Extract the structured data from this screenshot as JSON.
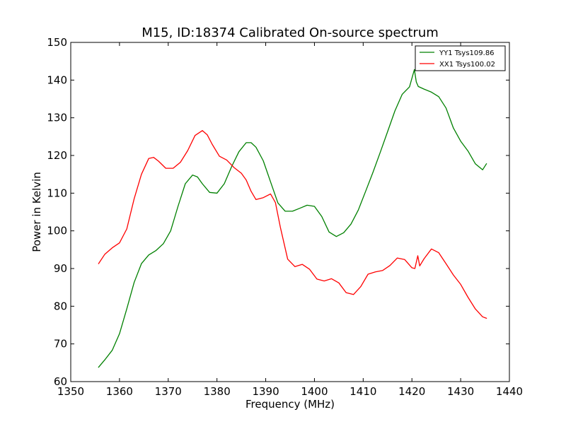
{
  "chart_data": {
    "type": "line",
    "title": "M15, ID:18374 Calibrated On-source spectrum",
    "xlabel": "Frequency (MHz)",
    "ylabel": "Power in Kelvin",
    "xlim": [
      1350,
      1440
    ],
    "ylim": [
      60,
      150
    ],
    "xticks": [
      1350,
      1360,
      1370,
      1380,
      1390,
      1400,
      1410,
      1420,
      1430,
      1440
    ],
    "yticks": [
      60,
      70,
      80,
      90,
      100,
      110,
      120,
      130,
      140,
      150
    ],
    "grid": false,
    "legend_position": "top-right",
    "series": [
      {
        "name": "YY1 Tsys109.86",
        "color": "#008000",
        "x": [
          1355.7,
          1357,
          1358.5,
          1360,
          1361.5,
          1363,
          1364.5,
          1366,
          1367.5,
          1369,
          1370.5,
          1372,
          1373.5,
          1375,
          1376,
          1377,
          1378.5,
          1380,
          1381.5,
          1383,
          1384.5,
          1386,
          1387,
          1388,
          1389.5,
          1391,
          1392.5,
          1394,
          1395.5,
          1397,
          1398.5,
          1400,
          1401.5,
          1403,
          1404.5,
          1406,
          1407.5,
          1409,
          1410.5,
          1412,
          1413.5,
          1415,
          1416.5,
          1418,
          1419.5,
          1420.5,
          1420.9,
          1421.3,
          1422.5,
          1424,
          1425.5,
          1427,
          1428.5,
          1430,
          1431.5,
          1433,
          1434.5,
          1435.3
        ],
        "y": [
          63.8,
          65.8,
          68.3,
          72.7,
          79.3,
          86.3,
          91.3,
          93.6,
          94.8,
          96.6,
          100,
          106.5,
          112.5,
          114.8,
          114.3,
          112.5,
          110.2,
          110,
          112.5,
          117,
          121,
          123.4,
          123.4,
          122.2,
          118.6,
          113,
          107.4,
          105.2,
          105.2,
          106,
          106.8,
          106.5,
          103.8,
          99.7,
          98.5,
          99.5,
          101.8,
          105.5,
          110.5,
          115.5,
          120.8,
          126.3,
          131.8,
          136.2,
          138.2,
          142.8,
          139.5,
          138.3,
          137.6,
          136.8,
          135.6,
          132.6,
          127.3,
          123.8,
          121.2,
          117.8,
          116.2,
          117.8
        ]
      },
      {
        "name": "XX1 Tsys100.02",
        "color": "#ff0000",
        "x": [
          1355.7,
          1357,
          1358.5,
          1360,
          1361.5,
          1363,
          1364.5,
          1366,
          1367,
          1368,
          1369.5,
          1371,
          1372.5,
          1374,
          1375.5,
          1377,
          1378,
          1379,
          1380.5,
          1382,
          1383.5,
          1385,
          1386,
          1387,
          1388,
          1389.5,
          1391,
          1392,
          1393,
          1394.5,
          1396,
          1397.5,
          1399,
          1400.5,
          1402,
          1403.5,
          1405,
          1406.5,
          1408,
          1409.5,
          1411,
          1412.5,
          1414,
          1415.5,
          1417,
          1418.5,
          1420,
          1420.6,
          1421.2,
          1421.6,
          1422.5,
          1424,
          1425.5,
          1427,
          1428.5,
          1430,
          1431.5,
          1433,
          1434.5,
          1435.3
        ],
        "y": [
          91.3,
          93.8,
          95.5,
          96.8,
          100.5,
          108.5,
          115,
          119.2,
          119.5,
          118.5,
          116.6,
          116.6,
          118.2,
          121.3,
          125.3,
          126.6,
          125.5,
          123,
          119.8,
          118.8,
          116.8,
          115.3,
          113.5,
          110.5,
          108.3,
          108.8,
          109.8,
          107.5,
          101,
          92.5,
          90.5,
          91.1,
          89.8,
          87.2,
          86.7,
          87.3,
          86.2,
          83.6,
          83.1,
          85.2,
          88.5,
          89.1,
          89.5,
          90.8,
          92.8,
          92.4,
          90.2,
          90,
          93.4,
          90.7,
          92.6,
          95.2,
          94.2,
          91.3,
          88.3,
          85.8,
          82.4,
          79.3,
          77.2,
          76.8
        ]
      }
    ]
  }
}
